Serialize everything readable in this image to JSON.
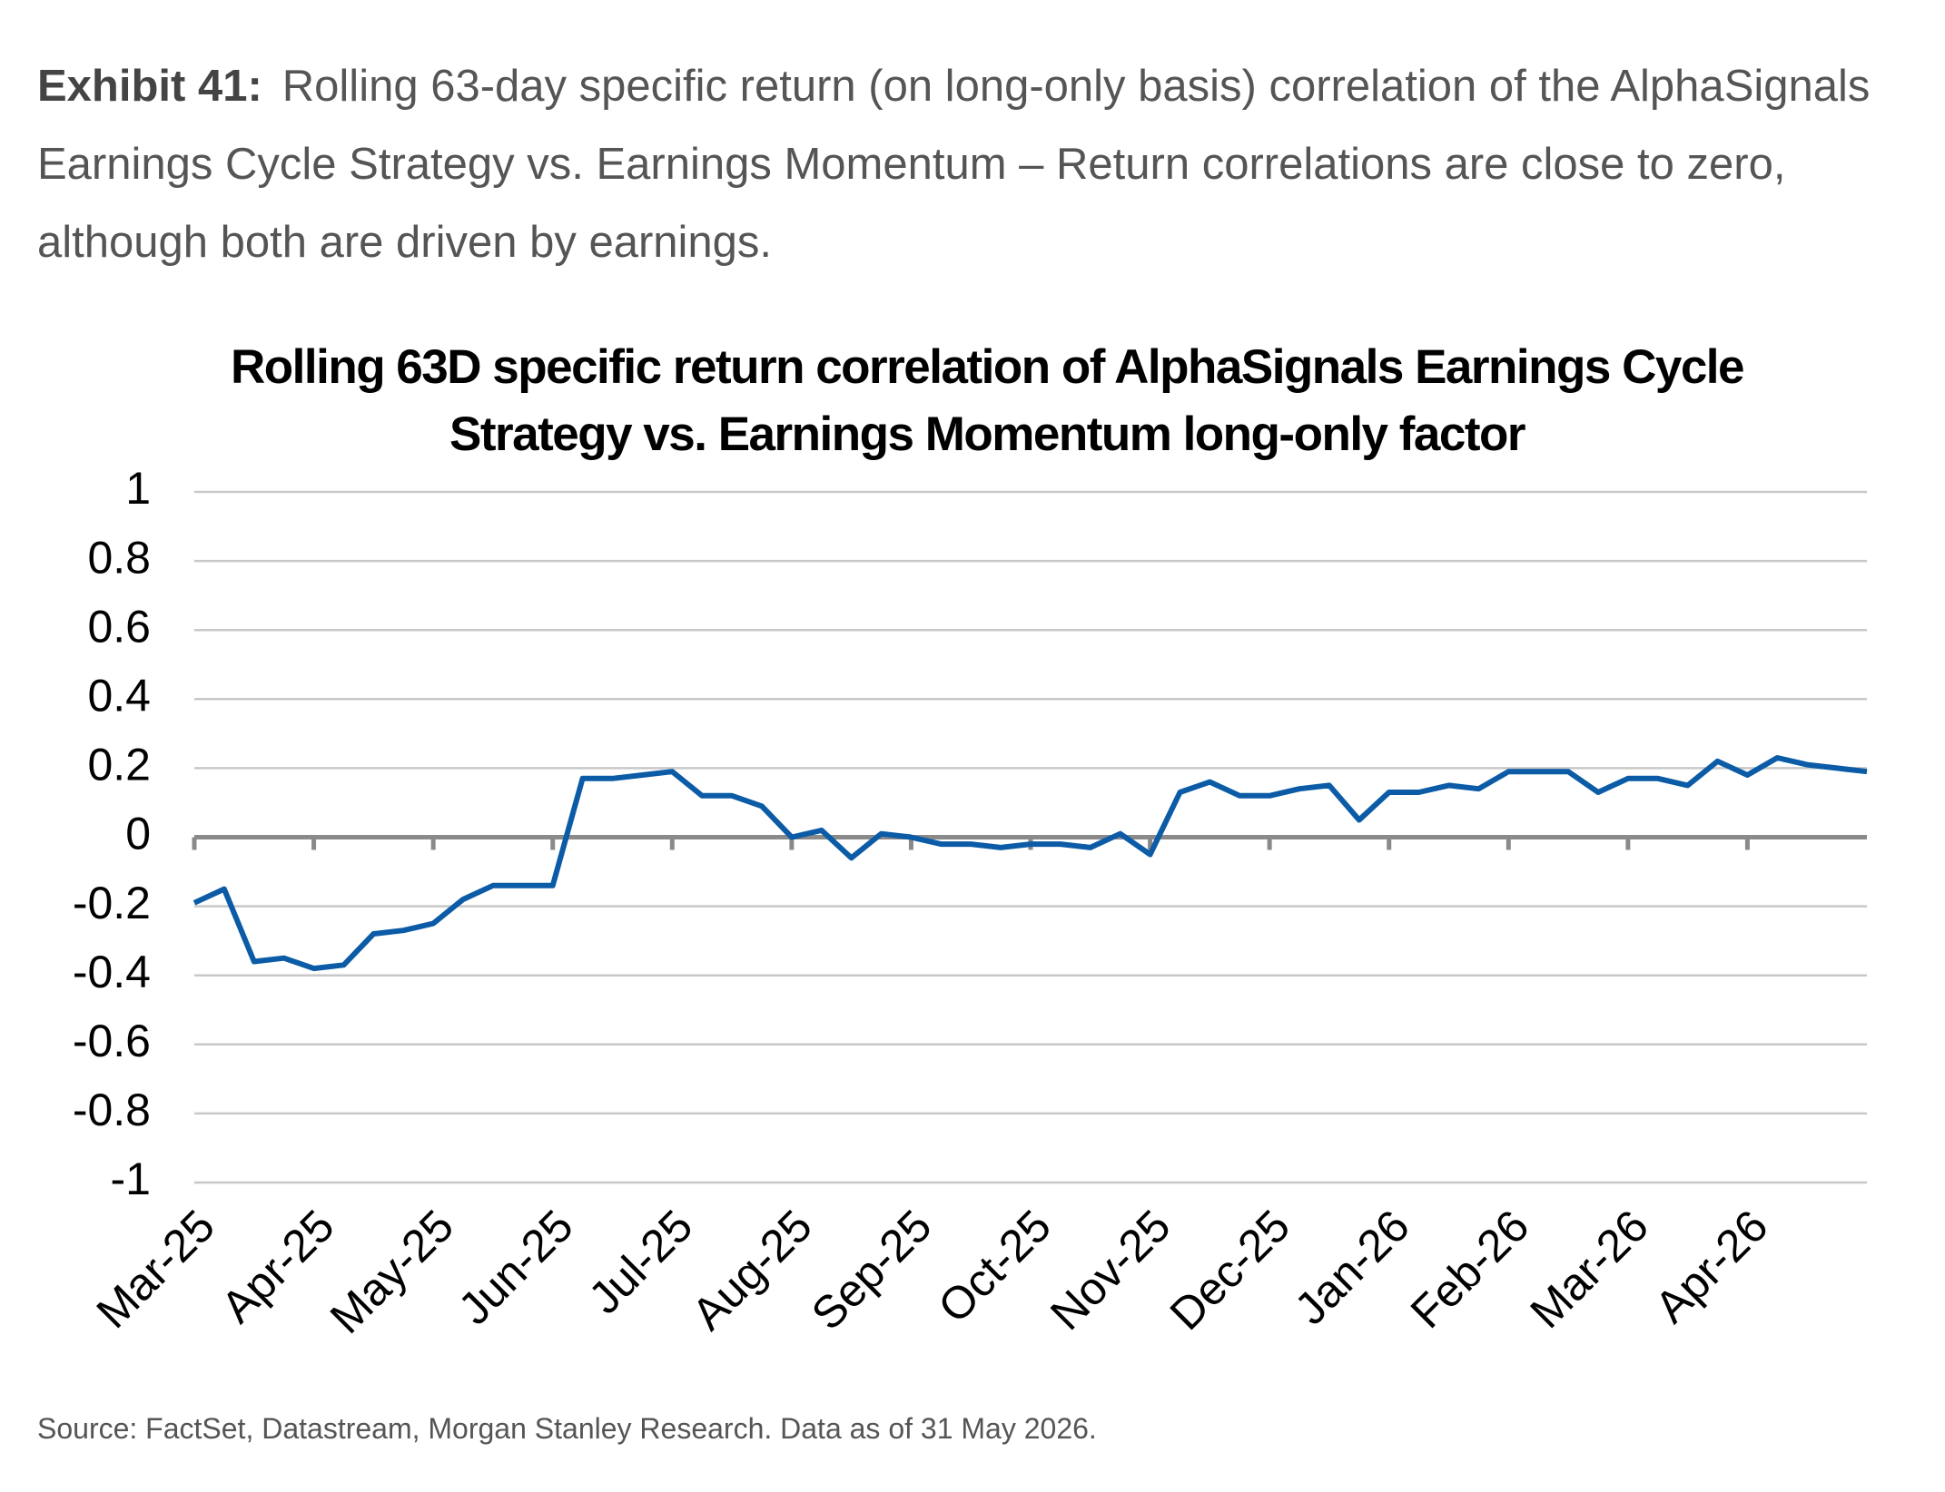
{
  "header": {
    "label": "Exhibit 41:",
    "text": "Rolling 63-day specific return (on long-only basis) correlation of the AlphaSignals Earnings Cycle Strategy vs. Earnings Momentum – Return correlations are close to zero, although both are driven by earnings."
  },
  "chart_data": {
    "type": "line",
    "title": "Rolling 63D specific return correlation of AlphaSignals Earnings Cycle Strategy vs. Earnings Momentum long-only factor",
    "categories": [
      "Mar-25",
      null,
      null,
      null,
      "Apr-25",
      null,
      null,
      null,
      "May-25",
      null,
      null,
      null,
      "Jun-25",
      null,
      null,
      null,
      "Jul-25",
      null,
      null,
      null,
      "Aug-25",
      null,
      null,
      null,
      "Sep-25",
      null,
      null,
      null,
      "Oct-25",
      null,
      null,
      null,
      "Nov-25",
      null,
      null,
      null,
      "Dec-25",
      null,
      null,
      null,
      "Jan-26",
      null,
      null,
      null,
      "Feb-26",
      null,
      null,
      null,
      "Mar-26",
      null,
      null,
      null,
      "Apr-26",
      null,
      null,
      null,
      null
    ],
    "series": [
      {
        "color": "#0b5ba6",
        "values": [
          -0.19,
          -0.15,
          -0.36,
          -0.35,
          -0.38,
          -0.37,
          -0.28,
          -0.27,
          -0.25,
          -0.18,
          -0.14,
          -0.14,
          -0.14,
          0.17,
          0.17,
          0.18,
          0.19,
          0.12,
          0.12,
          0.09,
          0.0,
          0.02,
          -0.06,
          0.01,
          0.0,
          -0.02,
          -0.02,
          -0.03,
          -0.02,
          -0.02,
          -0.03,
          0.01,
          -0.05,
          0.13,
          0.16,
          0.12,
          0.12,
          0.14,
          0.15,
          0.05,
          0.13,
          0.13,
          0.15,
          0.14,
          0.19,
          0.19,
          0.19,
          0.13,
          0.17,
          0.17,
          0.15,
          0.22,
          0.18,
          0.23,
          0.21,
          0.2,
          0.19
        ]
      }
    ],
    "ylim": [
      -1,
      1
    ],
    "yticks": [
      1,
      0.8,
      0.6,
      0.4,
      0.2,
      0,
      -0.2,
      -0.4,
      -0.6,
      -0.8,
      -1
    ],
    "grid": true
  },
  "source": "Source: FactSet, Datastream, Morgan Stanley Research. Data as of 31 May 2026."
}
